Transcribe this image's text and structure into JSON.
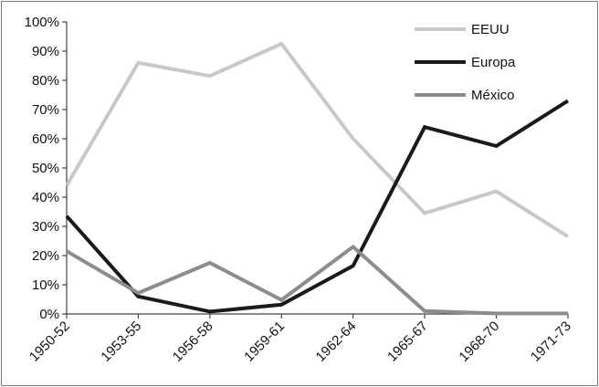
{
  "chart_data": {
    "type": "line",
    "categories": [
      "1950-52",
      "1953-55",
      "1956-58",
      "1959-61",
      "1962-64",
      "1965-67",
      "1968-70",
      "1971-73"
    ],
    "series": [
      {
        "name": "EEUU",
        "color": "#c8c8c8",
        "values": [
          44,
          86,
          81.5,
          92.5,
          60,
          34.5,
          42,
          26.5
        ]
      },
      {
        "name": "Europa",
        "color": "#1a1a1a",
        "values": [
          33.5,
          6,
          0.8,
          3.2,
          16.5,
          64,
          57.5,
          73
        ]
      },
      {
        "name": "México",
        "color": "#8c8c8c",
        "values": [
          21.5,
          7.2,
          17.5,
          4.8,
          23,
          1,
          0.2,
          0.2
        ]
      }
    ],
    "y_ticks": [
      "0%",
      "10%",
      "20%",
      "30%",
      "40%",
      "50%",
      "60%",
      "70%",
      "80%",
      "90%",
      "100%"
    ],
    "ylim": [
      0,
      100
    ],
    "grid": false,
    "legend_position": "top-right"
  }
}
